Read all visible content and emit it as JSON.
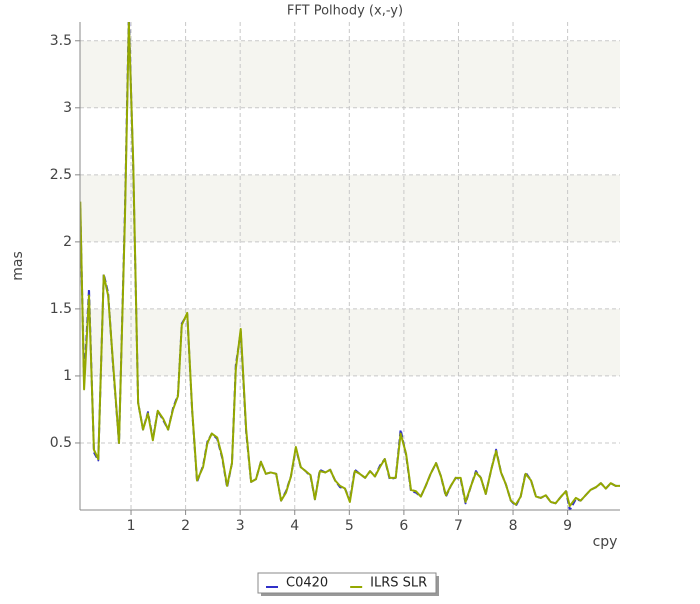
{
  "chart_data": {
    "type": "line",
    "title": "FFT Polhody (x,-y)",
    "xlabel": "cpy",
    "ylabel": "mas",
    "x": [
      0.07,
      0.14,
      0.23,
      0.32,
      0.4,
      0.5,
      0.58,
      0.67,
      0.78,
      0.89,
      0.96,
      1.04,
      1.13,
      1.22,
      1.31,
      1.4,
      1.49,
      1.59,
      1.68,
      1.77,
      1.86,
      1.93,
      2.03,
      2.12,
      2.21,
      2.32,
      2.4,
      2.48,
      2.58,
      2.67,
      2.76,
      2.85,
      2.92,
      3.01,
      3.11,
      3.2,
      3.29,
      3.38,
      3.47,
      3.56,
      3.66,
      3.75,
      3.84,
      3.93,
      4.02,
      4.11,
      4.2,
      4.29,
      4.37,
      4.46,
      4.56,
      4.65,
      4.74,
      4.83,
      4.92,
      5.01,
      5.1,
      5.19,
      5.29,
      5.38,
      5.47,
      5.56,
      5.65,
      5.74,
      5.85,
      5.94,
      6.04,
      6.13,
      6.22,
      6.31,
      6.4,
      6.49,
      6.59,
      6.68,
      6.77,
      6.86,
      6.95,
      7.04,
      7.13,
      7.23,
      7.32,
      7.41,
      7.5,
      7.6,
      7.69,
      7.78,
      7.87,
      7.96,
      8.05,
      8.14,
      8.23,
      8.33,
      8.42,
      8.51,
      8.6,
      8.69,
      8.78,
      8.88,
      8.97,
      9.04,
      9.15,
      9.24,
      9.33,
      9.42,
      9.52,
      9.61,
      9.7,
      9.79,
      9.88,
      9.96
    ],
    "series": [
      {
        "name": "C0420",
        "color": "#3030c8",
        "values": [
          2.25,
          0.95,
          1.65,
          0.43,
          0.37,
          1.76,
          1.62,
          1.08,
          0.5,
          2.25,
          3.7,
          2.55,
          0.8,
          0.6,
          0.73,
          0.53,
          0.74,
          0.67,
          0.6,
          0.76,
          0.86,
          1.39,
          1.46,
          0.74,
          0.21,
          0.33,
          0.51,
          0.57,
          0.53,
          0.39,
          0.17,
          0.35,
          1.08,
          1.33,
          0.58,
          0.21,
          0.23,
          0.36,
          0.27,
          0.28,
          0.27,
          0.07,
          0.14,
          0.25,
          0.46,
          0.32,
          0.29,
          0.25,
          0.08,
          0.3,
          0.28,
          0.3,
          0.22,
          0.17,
          0.16,
          0.07,
          0.3,
          0.27,
          0.24,
          0.29,
          0.25,
          0.33,
          0.38,
          0.23,
          0.24,
          0.6,
          0.41,
          0.14,
          0.13,
          0.1,
          0.18,
          0.27,
          0.35,
          0.25,
          0.1,
          0.18,
          0.24,
          0.23,
          0.05,
          0.18,
          0.29,
          0.24,
          0.12,
          0.3,
          0.45,
          0.28,
          0.19,
          0.07,
          0.03,
          0.1,
          0.28,
          0.22,
          0.1,
          0.09,
          0.11,
          0.06,
          0.05,
          0.1,
          0.14,
          0.0,
          0.08,
          0.07,
          0.11,
          0.15,
          0.17,
          0.2,
          0.16,
          0.2,
          0.18,
          0.18
        ]
      },
      {
        "name": "ILRS SLR",
        "color": "#94a800",
        "values": [
          2.3,
          0.9,
          1.6,
          0.45,
          0.38,
          1.75,
          1.6,
          1.1,
          0.5,
          2.2,
          3.64,
          2.6,
          0.8,
          0.6,
          0.72,
          0.52,
          0.74,
          0.68,
          0.6,
          0.75,
          0.85,
          1.38,
          1.47,
          0.75,
          0.22,
          0.32,
          0.5,
          0.57,
          0.54,
          0.4,
          0.18,
          0.35,
          1.05,
          1.35,
          0.6,
          0.21,
          0.23,
          0.36,
          0.27,
          0.28,
          0.27,
          0.07,
          0.13,
          0.25,
          0.47,
          0.32,
          0.29,
          0.26,
          0.08,
          0.29,
          0.28,
          0.3,
          0.22,
          0.18,
          0.16,
          0.06,
          0.29,
          0.27,
          0.24,
          0.29,
          0.25,
          0.32,
          0.38,
          0.24,
          0.24,
          0.57,
          0.42,
          0.15,
          0.14,
          0.1,
          0.18,
          0.27,
          0.35,
          0.25,
          0.11,
          0.18,
          0.24,
          0.24,
          0.06,
          0.18,
          0.28,
          0.24,
          0.12,
          0.3,
          0.44,
          0.28,
          0.19,
          0.07,
          0.04,
          0.1,
          0.27,
          0.22,
          0.1,
          0.09,
          0.11,
          0.06,
          0.05,
          0.1,
          0.14,
          0.03,
          0.09,
          0.07,
          0.11,
          0.15,
          0.17,
          0.2,
          0.16,
          0.2,
          0.18,
          0.18
        ]
      }
    ],
    "xlim": [
      0.065,
      9.96
    ],
    "ylim": [
      0,
      3.64
    ],
    "xticks": [
      1,
      2,
      3,
      4,
      5,
      6,
      7,
      8,
      9
    ],
    "yticks": [
      0.5,
      1,
      1.5,
      2,
      2.5,
      3,
      3.5
    ],
    "grid": true
  }
}
